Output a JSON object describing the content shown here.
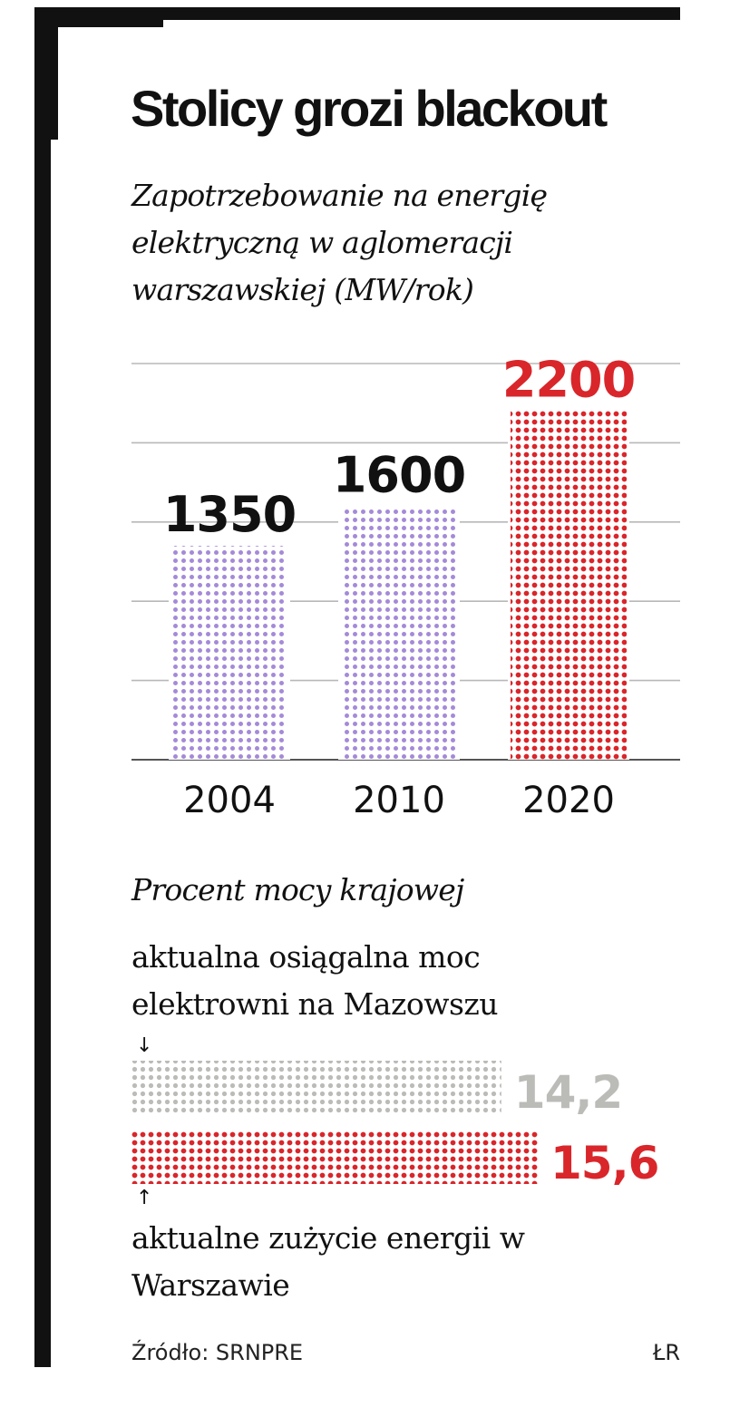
{
  "colors": {
    "frame": "#111111",
    "grid": "#b8b8b8",
    "bar_purple": "#a48ad8",
    "bar_red": "#d9262b",
    "bar_grey": "#bbbcb8",
    "text": "#111111"
  },
  "title": "Stolicy grozi blackout",
  "subtitle": "Zapotrzebowanie na energię elektryczną w aglomeracji warszawskiej (MW/rok)",
  "section2_title": "Procent mocy krajowej",
  "annotation_top": "aktualna osiągalna moc elektrowni na Mazowszu",
  "annotation_bottom": "aktualne zużycie energii w Warszawie",
  "arrow_down": "↓",
  "arrow_up": "↑",
  "source": "Źródło: SRNPRE",
  "credit": "ŁR",
  "chart_data": [
    {
      "type": "bar",
      "title": "Zapotrzebowanie na energię elektryczną w aglomeracji warszawskiej (MW/rok)",
      "categories": [
        "2004",
        "2010",
        "2020"
      ],
      "values": [
        1350,
        1600,
        2200
      ],
      "value_labels": [
        "1350",
        "1600",
        "2200"
      ],
      "bar_colors": [
        "#a48ad8",
        "#a48ad8",
        "#d9262b"
      ],
      "label_colors": [
        "#111111",
        "#111111",
        "#d9262b"
      ],
      "ylim": [
        0,
        2500
      ],
      "grid": true,
      "xlabel": "",
      "ylabel": ""
    },
    {
      "type": "bar",
      "orientation": "horizontal",
      "title": "Procent mocy krajowej",
      "categories": [
        "aktualna osiągalna moc elektrowni na Mazowszu",
        "aktualne zużycie energii w Warszawie"
      ],
      "values": [
        14.2,
        15.6
      ],
      "value_labels": [
        "14,2",
        "15,6"
      ],
      "bar_colors": [
        "#bbbcb8",
        "#d9262b"
      ],
      "label_colors": [
        "#bbbcb8",
        "#d9262b"
      ]
    }
  ]
}
